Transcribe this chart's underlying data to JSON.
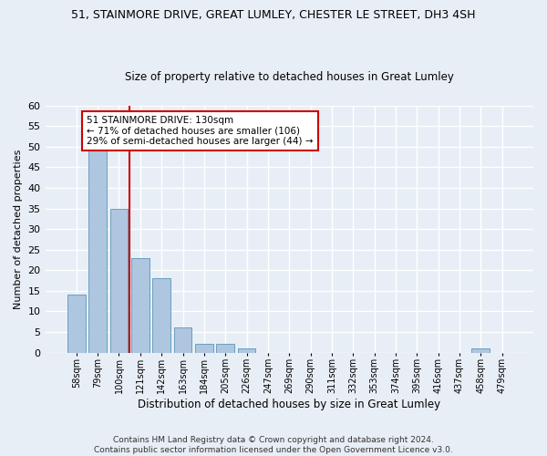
{
  "title1": "51, STAINMORE DRIVE, GREAT LUMLEY, CHESTER LE STREET, DH3 4SH",
  "title2": "Size of property relative to detached houses in Great Lumley",
  "xlabel": "Distribution of detached houses by size in Great Lumley",
  "ylabel": "Number of detached properties",
  "bin_labels": [
    "58sqm",
    "79sqm",
    "100sqm",
    "121sqm",
    "142sqm",
    "163sqm",
    "184sqm",
    "205sqm",
    "226sqm",
    "247sqm",
    "269sqm",
    "290sqm",
    "311sqm",
    "332sqm",
    "353sqm",
    "374sqm",
    "395sqm",
    "416sqm",
    "437sqm",
    "458sqm",
    "479sqm"
  ],
  "bar_values": [
    14,
    49,
    35,
    23,
    18,
    6,
    2,
    2,
    1,
    0,
    0,
    0,
    0,
    0,
    0,
    0,
    0,
    0,
    0,
    1,
    0
  ],
  "bar_color": "#aec6df",
  "bar_edge_color": "#6a9fc0",
  "vline_color": "#cc0000",
  "annotation_text": "51 STAINMORE DRIVE: 130sqm\n← 71% of detached houses are smaller (106)\n29% of semi-detached houses are larger (44) →",
  "annotation_box_color": "#ffffff",
  "annotation_box_edge": "#cc0000",
  "ylim": [
    0,
    60
  ],
  "yticks": [
    0,
    5,
    10,
    15,
    20,
    25,
    30,
    35,
    40,
    45,
    50,
    55,
    60
  ],
  "footer": "Contains HM Land Registry data © Crown copyright and database right 2024.\nContains public sector information licensed under the Open Government Licence v3.0.",
  "bg_color": "#e8eef5",
  "grid_color": "#ffffff"
}
